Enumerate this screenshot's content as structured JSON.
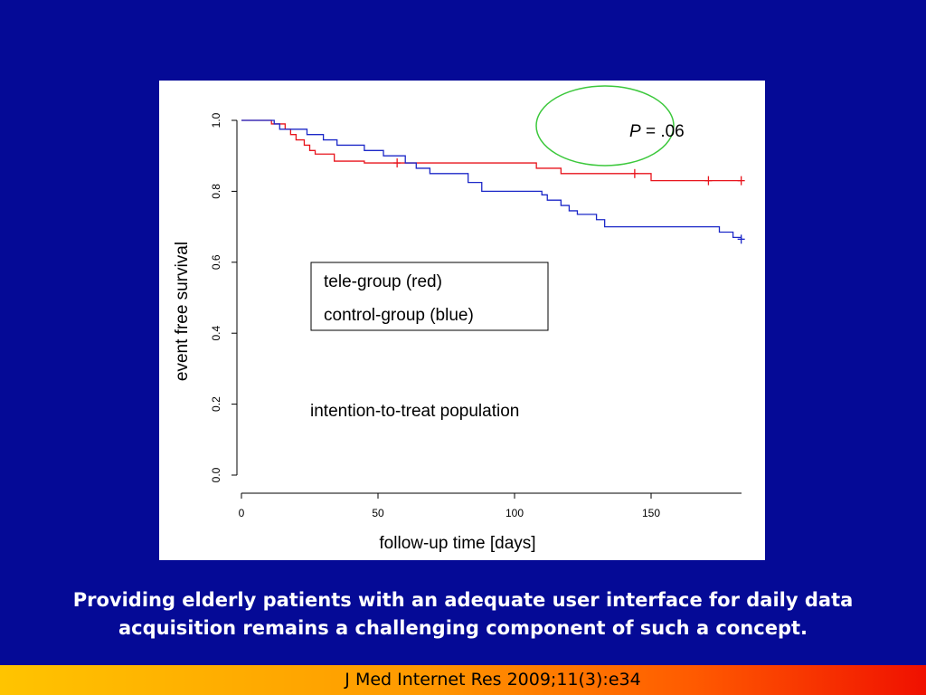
{
  "slide": {
    "caption": "Providing elderly patients with an adequate user interface for daily data acquisition remains a challenging component of such a concept.",
    "citation": "J Med Internet Res 2009;11(3):e34"
  },
  "colors": {
    "background": "#050a96",
    "tele": "#e8141c",
    "control": "#1c28c8",
    "circle": "#3cc83c"
  },
  "chart_data": {
    "type": "line",
    "xlabel": "follow-up time  [days]",
    "ylabel": "event free survival",
    "xlim": [
      0,
      185
    ],
    "ylim": [
      0.0,
      1.0
    ],
    "x_ticks": [
      "0",
      "50",
      "100",
      "150"
    ],
    "y_ticks": [
      "0.0",
      "0.2",
      "0.4",
      "0.6",
      "0.8",
      "1.0"
    ],
    "p_value": {
      "label": "P",
      "text": " = .06"
    },
    "legend": [
      "tele-group (red)",
      "control-group (blue)"
    ],
    "legend_position": "center-left",
    "annotation": "intention-to-treat population",
    "series": [
      {
        "name": "tele-group (red)",
        "step_x": [
          0,
          11,
          16,
          18,
          20,
          23,
          25,
          27,
          34,
          45,
          108,
          117,
          150,
          183
        ],
        "step_y": [
          1.0,
          0.99,
          0.975,
          0.96,
          0.945,
          0.93,
          0.915,
          0.905,
          0.885,
          0.88,
          0.865,
          0.85,
          0.83,
          0.83
        ],
        "censored_x": [
          57,
          144,
          171,
          183
        ]
      },
      {
        "name": "control-group (blue)",
        "step_x": [
          0,
          12,
          14,
          24,
          30,
          35,
          45,
          52,
          60,
          64,
          69,
          83,
          88,
          110,
          112,
          117,
          120,
          123,
          130,
          133,
          150,
          175,
          180,
          183
        ],
        "step_y": [
          1.0,
          0.99,
          0.975,
          0.96,
          0.945,
          0.93,
          0.915,
          0.9,
          0.88,
          0.865,
          0.85,
          0.825,
          0.8,
          0.79,
          0.775,
          0.76,
          0.745,
          0.735,
          0.72,
          0.7,
          0.7,
          0.685,
          0.67,
          0.665
        ],
        "censored_x": [
          183
        ]
      }
    ]
  }
}
